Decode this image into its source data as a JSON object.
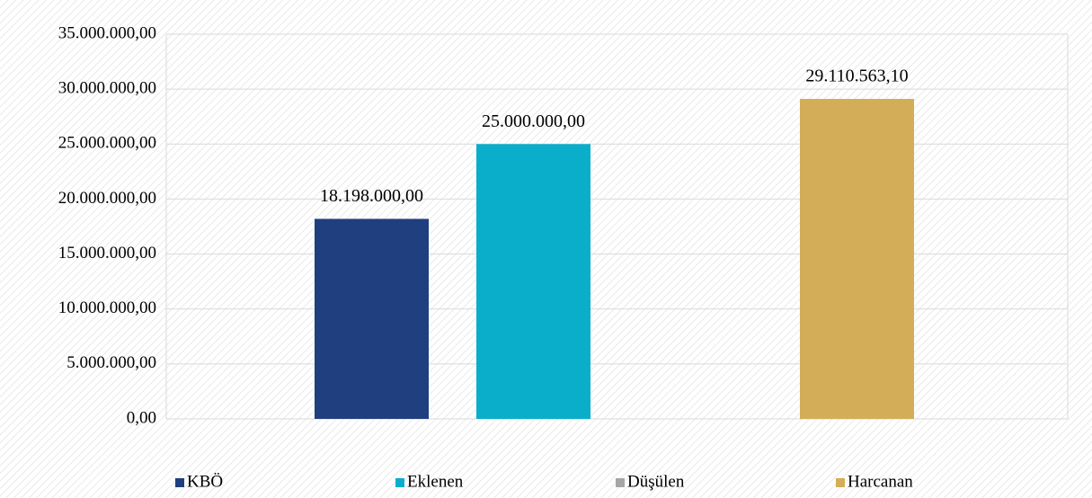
{
  "chart_data": {
    "type": "bar",
    "categories": [
      null
    ],
    "series": [
      {
        "name": "KBÖ",
        "color": "#1f3f7f",
        "values": [
          18198000
        ],
        "value_labels": [
          "18.198.000,00"
        ]
      },
      {
        "name": "Eklenen",
        "color": "#0aaecb",
        "values": [
          25000000
        ],
        "value_labels": [
          "25.000.000,00"
        ]
      },
      {
        "name": "Düşülen",
        "color": "#a6a6a6",
        "values": [
          null
        ]
      },
      {
        "name": "Harcanan",
        "color": "#d3ad58",
        "values": [
          29110563.1
        ],
        "value_labels": [
          "29.110.563,10"
        ]
      }
    ],
    "ylim": [
      0,
      35000000
    ],
    "yticks": [
      {
        "value": 0,
        "label": "0,00"
      },
      {
        "value": 5000000,
        "label": "5.000.000,00"
      },
      {
        "value": 10000000,
        "label": "10.000.000,00"
      },
      {
        "value": 15000000,
        "label": "15.000.000,00"
      },
      {
        "value": 20000000,
        "label": "20.000.000,00"
      },
      {
        "value": 25000000,
        "label": "25.000.000,00"
      },
      {
        "value": 30000000,
        "label": "30.000.000,00"
      },
      {
        "value": 35000000,
        "label": "35.000.000,00"
      }
    ],
    "grid": true,
    "legend": "bottom"
  }
}
